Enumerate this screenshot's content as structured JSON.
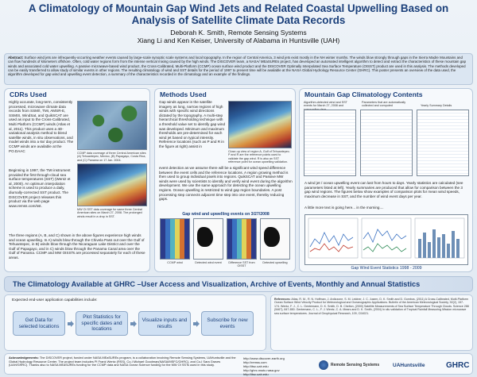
{
  "header": {
    "title": "A Climatology of Mountain Gap Wind Jets and Related Coastal Upwelling Based on Analysis of Satellite Climate Data Records",
    "author_line": "Deborah K. Smith, Remote Sensing Systems",
    "coauthor_line": "Xiang Li and Ken Keiser, University of Alabama in Huntsville (UAH)"
  },
  "abstract": {
    "label": "Abstract:",
    "text": "Surface wind jets are infrequently-occurring weather events caused by large-scale synoptic scale systems and local topography. In the region of Central America, 3 wind jets exist mostly in the NH winter months. The winds blow strongly through gaps in the Sierra Madre Mountains and can flow hundreds of kilometers offshore. Often, cold water regions form from the intense vertical mixing caused by the high winds. The DISCOVER team, a NASA/ MEaSUREs project, has developed an automated intelligent algorithm to detect and extract the characteristics of these mountain gap winds and associated cold water upwelling. A passive microwave-based wind product, the Cross-Calibrated, Multi-Platform (CCMP) ocean surface wind product and the DISCOVER Optimally Interpolated Sea Surface Temperature (OISST) product are used in this analysis. The methods developed can be easily transferred to allow study of similar events in other regions. The resulting climatology of wind and SST details for the period of 1997 to present time will be available at the NASA Global Hydrology Resource Center (GHRC). This poster presents an overview of the data used, the algorithm developed for gap wind and upwelling event detection, a summary of the characteristics recorded in the climatology and an example of the findings."
  },
  "cdrs": {
    "title": "CDRs Used",
    "para1": "Highly accurate, long-term, consistently processed, microwave climate data records from SSM/I, TMI, AMSR-E, SSMIS, WindSat, and QuikSCAT are used as input to the Cross-Calibrated, Multi Platform (CCMP) winds (Atlas et al, 2011). This product uses a 4D-variational analysis method to blend satellite winds, in situ observations, and model winds into a 6x/ day product. The CCMP winds are available at the PO.DAAC",
    "para2": "Beginning in 1997, the TMI instrument provided the first through-cloud sea surface temperatures (SST) (Wentz et al, 2000). An optimum interpolation scheme is used to produce a daily, diurnally-corrected SST product. The DISCOVER project releases this product via the web page www.remss.com/sst.",
    "para3": "The three regions (A, B, and C) shown in the above figures experience high winds and ocean upwelling. In A) winds blow through the Chivela Pass out over the Gulf of Tehuantepec, in B) winds blow through the Nicaraguan Lake District and over the Gulf of Papagayo, and in C) winds blow through the Panama Canal area over the Gulf of Panama. CCMP and MW OISSTs are processed separately for each of these areas.",
    "cap1": "CCMP data coverage of three Central American sites (A) Tehuantepec, Mexico, (B) Papagayo, Costa Rica, and (C) Panama on 17 Jan. 2004.",
    "cap2": "MW OI SST data coverage for same three Central American sites on March 27, 2008. The prolonged winds result in a drop in SST."
  },
  "methods": {
    "title": "Methods Used",
    "para1": "Gap winds appear in the satellite imagery as long, narrow regions of high winds with specific wind directions dictated by the topography. A multi-step hierarchical thresholding technique with a threshold value set to identify gap wind was developed. Minimum and maximum thresholds are pre-determined for each wind jet based on typical intensity. Reference locations (such as P and R in the figure at right) assist in",
    "para2": "event detection as we assume there will be a significant wind speed difference between the event cells and the reference locations. A region growing method is then used to group individual pixels into regions. QuikSCAT and Passive MW winds were used by scientists to identify and verify wind event during the algorithm development. We use the same approach for detecting the ocean upwelling regions. Ocean upwelling is restricted to wind gap region boundaries. A post processing step connects adjacent time step into one event, thereby reducing gaps.",
    "fig_caption": "Close-up view of region A, Gulf of Tehuantepec. P and R are the reference points used to validate the gap wind. R is also an SST reference point for ocean upwelling validation.",
    "subhead": "Gap wind and upwelling events on 3/27/2008",
    "capA": "CCMP wind",
    "capB": "Detected wind event",
    "capC": "Difference SST from OISST",
    "capD": "Detected upwelling"
  },
  "climatology": {
    "title": "Mountain Gap Climatology Contents",
    "tab1": "Algorithm-detected wind and SST events for March 27, 2008 and surrounding days",
    "tab2": "Parameters that are automatically collected and computed",
    "tab3": "Yearly Summary Details",
    "para1": "A wind jet / ocean upwelling event can last from hours to days. Yearly statistics are calculated (see parameters listed at left). Yearly summaries are produced that allow for comparison between the 3 gap wind regions. The figures below show examples of comparison plots for mean wind speeds, maximum decrease in SST, and the number of wind event days per year.",
    "para2": "A little more text is going here... in the morning....",
    "figcap": "Gap Wind Event Statistics 1998 - 2009"
  },
  "band": {
    "title": "The Climatology Available at GHRC –User Access and Visualization, Archive of Events, Monthly and Annual Statistics"
  },
  "users": {
    "lead": "Expected end-user application capabilities include:",
    "b1": "Get Data for selected locations",
    "b2": "Plot Statistics for specific dates and locations",
    "b3": "Visualize inputs and results",
    "b4": "Subscribe for new events"
  },
  "references": {
    "label": "References:",
    "text": "Atlas, R. M., R. N. Hoffman, J. Ardizzone, S. M. Leidner, J. C. Jusem, D. K. Smith and D. Gombos, (2011) A Cross-Calibrated, Multi-Platform Ocean Surface Wind Velocity Product for Meteorological and Oceanographic Applications. Bulletin of the American Meteorological Society, 92(2), 157-174. Wentz, F. J., C. L. Gentemann, D. K. Smith, D. B. Chelton, (2000) Satellite Measurements of Sea Surface Temperature Through Clouds. Science 288 (5467), 847-850. Gentemann, C. L., F. J. Wentz, C. A. Mears and D. K. Smith, (2004) In situ validation of Tropical Rainfall Measuring Mission microwave sea surface temperatures. Journal of Geophysical Research, 109, C04021."
  },
  "ack": {
    "label": "Acknowledgements:",
    "text": "The DISCOVER project, funded under NASA MEaSUREs program, is a collaboration involving Remote Sensing Systems, UAHuntsville and the Global Hydrology Resource Center. The project team includes PI Frank Wentz (RSS), Co-I Michael Goodman(NASA/MSFC/GHRC), and Co-I Sara Graves (UAH/GHRC). Thanks also to NASA MEaSUREs funding for the CCMP data and NASA Ocean Science funding for the MW OI SSTs used in this study.",
    "url1": "http://www.discover-earth.org",
    "url2": "http://remss.com",
    "url3": "http://itsc.uah.edu",
    "url4": "http://ghrc.nsstc.nasa.gov",
    "url5": "http://itsc.uah.edu",
    "logo1": "Remote Sensing Systems",
    "logo2": "UAHuntsville",
    "logo3": "GHRC"
  },
  "colors": {
    "title": "#1a3f7a",
    "panel": "#f6f9fc",
    "border": "#b9c9dc",
    "button": "#cfe0f3"
  }
}
